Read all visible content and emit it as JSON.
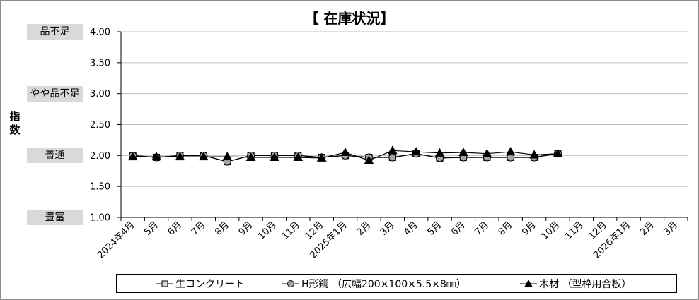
{
  "chart_data": {
    "type": "line",
    "title": "【 在庫状況】",
    "ylabel": "指数",
    "ylim": [
      1.0,
      4.0
    ],
    "yticks": [
      "4.00",
      "3.50",
      "3.00",
      "2.50",
      "2.00",
      "1.50",
      "1.00"
    ],
    "grid": true,
    "legend_position": "bottom",
    "categories": [
      "2024年4月",
      "5月",
      "6月",
      "7月",
      "8月",
      "9月",
      "10月",
      "11月",
      "12月",
      "2025年1月",
      "2月",
      "3月",
      "4月",
      "5月",
      "6月",
      "7月",
      "8月",
      "9月",
      "10月",
      "11月",
      "12月",
      "2026年1月",
      "2月",
      "3月"
    ],
    "level_labels": [
      {
        "text": "品不足",
        "value": 4.0
      },
      {
        "text": "やや品不足",
        "value": 3.0
      },
      {
        "text": "普通",
        "value": 2.0
      },
      {
        "text": "豊富",
        "value": 1.0
      }
    ],
    "series": [
      {
        "name": "生コンクリート",
        "marker": "square",
        "color": "#d9d9d9",
        "values": [
          2.0,
          1.97,
          2.0,
          2.0,
          1.9,
          2.0,
          2.0,
          2.0,
          1.97,
          2.0,
          1.97,
          1.97,
          2.03,
          1.96,
          1.97,
          1.97,
          1.97,
          1.97,
          2.03,
          null,
          null,
          null,
          null,
          null
        ]
      },
      {
        "name": "H形鋼 （広幅200×100×5.5×8㎜）",
        "marker": "circle",
        "color": "#a6a6a6",
        "values": [
          2.0,
          1.97,
          2.0,
          2.0,
          1.9,
          2.0,
          2.0,
          2.0,
          1.97,
          2.0,
          1.97,
          1.97,
          2.03,
          1.96,
          1.97,
          1.97,
          1.97,
          1.97,
          2.03,
          null,
          null,
          null,
          null,
          null
        ]
      },
      {
        "name": "木材 （型枠用合板）",
        "marker": "triangle",
        "color": "#000000",
        "values": [
          1.98,
          1.98,
          1.98,
          1.98,
          1.98,
          1.97,
          1.97,
          1.97,
          1.96,
          2.05,
          1.92,
          2.08,
          2.06,
          2.04,
          2.05,
          2.03,
          2.06,
          2.01,
          2.03,
          null,
          null,
          null,
          null,
          null
        ]
      }
    ]
  }
}
